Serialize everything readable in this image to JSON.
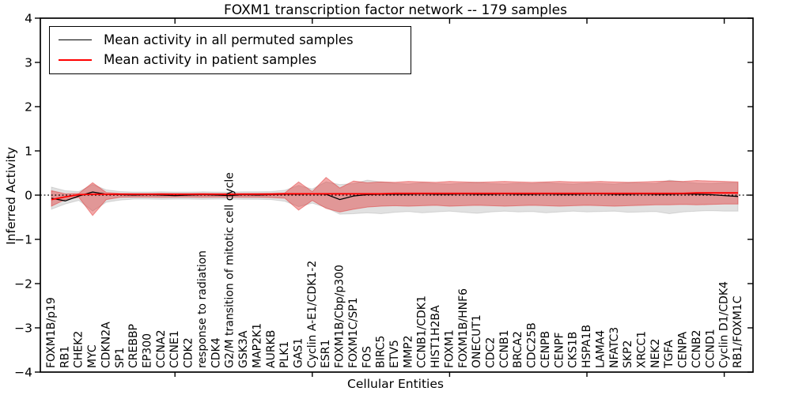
{
  "chart_data": {
    "type": "line",
    "title": "FOXM1 transcription factor network -- 179 samples",
    "xlabel": "Cellular Entities",
    "ylabel": "Inferred Activity",
    "ylim": [
      -4,
      4
    ],
    "ytick_values": [
      4,
      3,
      2,
      1,
      0,
      -1,
      -2,
      -3,
      -4
    ],
    "ytick_labels": [
      "4",
      "3",
      "2",
      "1",
      "0",
      "−1",
      "−2",
      "−3",
      "−4"
    ],
    "xtick_indices": [
      9,
      19,
      29,
      39,
      49
    ],
    "grid": false,
    "legend_position": "upper left",
    "zero_line_style": "dotted",
    "categories": [
      "FOXM1B/p19",
      "RB1",
      "CHEK2",
      "MYC",
      "CDKN2A",
      "SP1",
      "CREBBP",
      "EP300",
      "CCNA2",
      "CCNE1",
      "CDK2",
      "response to radiation",
      "CDK4",
      "G2/M transition of mitotic cell cycle",
      "GSK3A",
      "MAP2K1",
      "AURKB",
      "PLK1",
      "GAS1",
      "Cyclin A-E1/CDK1-2",
      "ESR1",
      "FOXM1B/Cbp/p300",
      "FOXM1C/SP1",
      "FOS",
      "BIRC5",
      "ETV5",
      "MMP2",
      "CCNB1/CDK1",
      "HIST1H2BA",
      "FOXM1",
      "FOXM1B/HNF6",
      "ONECUT1",
      "CDC2",
      "CCNB1",
      "BRCA2",
      "CDC25B",
      "CENPB",
      "CENPF",
      "CKS1B",
      "HSPA1B",
      "LAMA4",
      "NFATC3",
      "SKP2",
      "XRCC1",
      "NEK2",
      "TGFA",
      "CENPA",
      "CCNB2",
      "CCND1",
      "Cyclin D1/CDK4",
      "RB1/FOXM1C"
    ],
    "series": [
      {
        "name": "Mean activity in all permuted samples",
        "color": "#000000",
        "values": [
          -0.07,
          -0.13,
          -0.02,
          0.07,
          0.02,
          0.01,
          0.0,
          0.01,
          0.0,
          -0.01,
          0.0,
          0.01,
          0.0,
          -0.01,
          0.01,
          0.0,
          0.01,
          0.02,
          0.02,
          0.03,
          0.02,
          -0.1,
          -0.02,
          0.01,
          0.02,
          0.02,
          0.02,
          0.03,
          0.02,
          0.02,
          0.03,
          0.02,
          0.02,
          0.03,
          0.02,
          0.02,
          0.03,
          0.02,
          0.02,
          0.03,
          0.03,
          0.02,
          0.02,
          0.03,
          0.02,
          0.02,
          0.03,
          0.02,
          0.01,
          -0.01,
          -0.03
        ]
      },
      {
        "name": "Mean activity in patient samples",
        "color": "#ff0000",
        "values": [
          -0.1,
          -0.04,
          0.01,
          0.02,
          0.02,
          0.02,
          0.02,
          0.02,
          0.02,
          0.02,
          0.02,
          0.02,
          0.02,
          0.02,
          0.02,
          0.02,
          0.02,
          0.03,
          0.03,
          0.03,
          0.03,
          0.03,
          0.03,
          0.03,
          0.03,
          0.04,
          0.04,
          0.04,
          0.04,
          0.04,
          0.04,
          0.04,
          0.04,
          0.04,
          0.04,
          0.04,
          0.04,
          0.04,
          0.04,
          0.04,
          0.04,
          0.04,
          0.04,
          0.04,
          0.04,
          0.04,
          0.04,
          0.05,
          0.05,
          0.05,
          0.05
        ]
      }
    ],
    "bands": [
      {
        "name": "Permuted samples activity spread",
        "color": "#828282",
        "opacity": 0.24,
        "edge_opacity": 0.25,
        "upper": [
          0.18,
          0.1,
          0.08,
          0.24,
          0.12,
          0.08,
          0.07,
          0.07,
          0.075,
          0.07,
          0.07,
          0.075,
          0.07,
          0.07,
          0.075,
          0.075,
          0.08,
          0.11,
          0.22,
          0.14,
          0.3,
          0.24,
          0.26,
          0.34,
          0.3,
          0.27,
          0.25,
          0.28,
          0.26,
          0.25,
          0.27,
          0.29,
          0.26,
          0.25,
          0.27,
          0.26,
          0.28,
          0.26,
          0.25,
          0.27,
          0.26,
          0.25,
          0.28,
          0.27,
          0.26,
          0.34,
          0.3,
          0.27,
          0.26,
          0.28,
          0.28
        ],
        "lower": [
          -0.32,
          -0.2,
          -0.12,
          -0.36,
          -0.16,
          -0.11,
          -0.09,
          -0.09,
          -0.095,
          -0.09,
          -0.09,
          -0.095,
          -0.09,
          -0.09,
          -0.095,
          -0.095,
          -0.1,
          -0.14,
          -0.26,
          -0.18,
          -0.28,
          -0.43,
          -0.42,
          -0.4,
          -0.42,
          -0.39,
          -0.37,
          -0.4,
          -0.38,
          -0.36,
          -0.39,
          -0.41,
          -0.38,
          -0.36,
          -0.38,
          -0.37,
          -0.4,
          -0.38,
          -0.36,
          -0.38,
          -0.37,
          -0.36,
          -0.39,
          -0.38,
          -0.37,
          -0.42,
          -0.38,
          -0.36,
          -0.35,
          -0.36,
          -0.36
        ]
      },
      {
        "name": "Patient samples activity spread",
        "color": "#e12828",
        "opacity": 0.4,
        "edge_opacity": 0.45,
        "upper": [
          0.1,
          0.03,
          0.04,
          0.28,
          0.06,
          0.04,
          0.035,
          0.035,
          0.04,
          0.035,
          0.035,
          0.04,
          0.035,
          0.035,
          0.04,
          0.04,
          0.045,
          0.05,
          0.3,
          0.08,
          0.4,
          0.16,
          0.32,
          0.28,
          0.3,
          0.29,
          0.31,
          0.3,
          0.29,
          0.31,
          0.3,
          0.29,
          0.3,
          0.31,
          0.3,
          0.29,
          0.3,
          0.31,
          0.3,
          0.3,
          0.31,
          0.3,
          0.29,
          0.3,
          0.31,
          0.32,
          0.31,
          0.33,
          0.32,
          0.31,
          0.3
        ],
        "lower": [
          -0.25,
          -0.1,
          -0.05,
          -0.46,
          -0.1,
          -0.05,
          -0.045,
          -0.045,
          -0.05,
          -0.045,
          -0.045,
          -0.05,
          -0.045,
          -0.045,
          -0.05,
          -0.05,
          -0.055,
          -0.07,
          -0.34,
          -0.12,
          -0.3,
          -0.38,
          -0.32,
          -0.27,
          -0.25,
          -0.24,
          -0.25,
          -0.24,
          -0.23,
          -0.25,
          -0.24,
          -0.23,
          -0.24,
          -0.25,
          -0.24,
          -0.23,
          -0.24,
          -0.25,
          -0.24,
          -0.23,
          -0.24,
          -0.25,
          -0.24,
          -0.23,
          -0.22,
          -0.22,
          -0.21,
          -0.22,
          -0.21,
          -0.2,
          -0.2
        ]
      }
    ]
  }
}
